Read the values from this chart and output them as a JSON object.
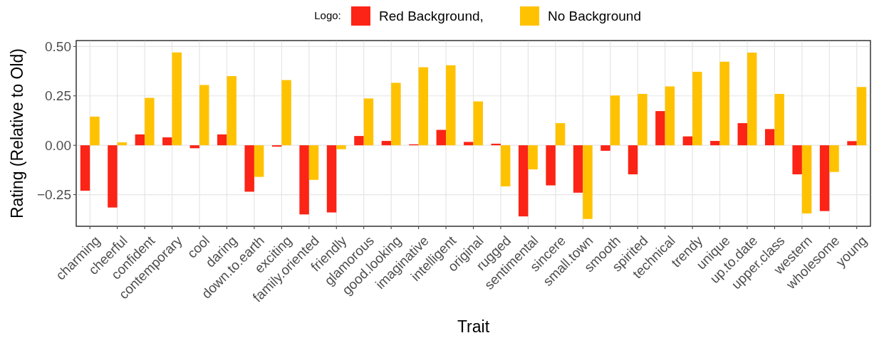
{
  "chart_data": {
    "type": "bar",
    "xlabel": "Trait",
    "ylabel": "Rating (Relative to Old)",
    "legend_title": "Logo:",
    "legend": "top",
    "grid": true,
    "categories": [
      "charming",
      "cheerful",
      "confident",
      "contemporary",
      "cool",
      "daring",
      "down.to.earth",
      "exciting",
      "family.oriented",
      "friendly",
      "glamorous",
      "good.looking",
      "imaginative",
      "intelligent",
      "original",
      "rugged",
      "sentimental",
      "sincere",
      "small.town",
      "smooth",
      "spirited",
      "technical",
      "trendy",
      "unique",
      "up.to.date",
      "upper.class",
      "western",
      "wholesome",
      "young"
    ],
    "series": [
      {
        "name": "Red Background,",
        "color": "#fb2416",
        "values": [
          -0.23,
          -0.315,
          0.055,
          0.04,
          -0.015,
          0.055,
          -0.235,
          -0.007,
          -0.35,
          -0.34,
          0.047,
          0.022,
          0.005,
          0.078,
          0.017,
          0.008,
          -0.36,
          -0.203,
          -0.24,
          -0.028,
          -0.147,
          0.173,
          0.045,
          0.022,
          0.112,
          0.082,
          -0.147,
          -0.333,
          0.021
        ]
      },
      {
        "name": "No Background",
        "color": "#ffc200",
        "values": [
          0.145,
          0.015,
          0.24,
          0.47,
          0.305,
          0.35,
          -0.16,
          0.33,
          -0.175,
          -0.02,
          0.237,
          0.316,
          0.395,
          0.405,
          0.222,
          -0.208,
          -0.122,
          0.112,
          -0.373,
          0.252,
          0.26,
          0.298,
          0.372,
          0.423,
          0.469,
          0.26,
          -0.345,
          -0.135,
          0.295
        ]
      }
    ],
    "ylim": [
      -0.41,
      0.53
    ],
    "yticks": [
      {
        "value": -0.25,
        "label": "−0.25"
      },
      {
        "value": 0,
        "label": "0.00"
      },
      {
        "value": 0.25,
        "label": "0.25"
      },
      {
        "value": 0.5,
        "label": "0.50"
      }
    ]
  }
}
